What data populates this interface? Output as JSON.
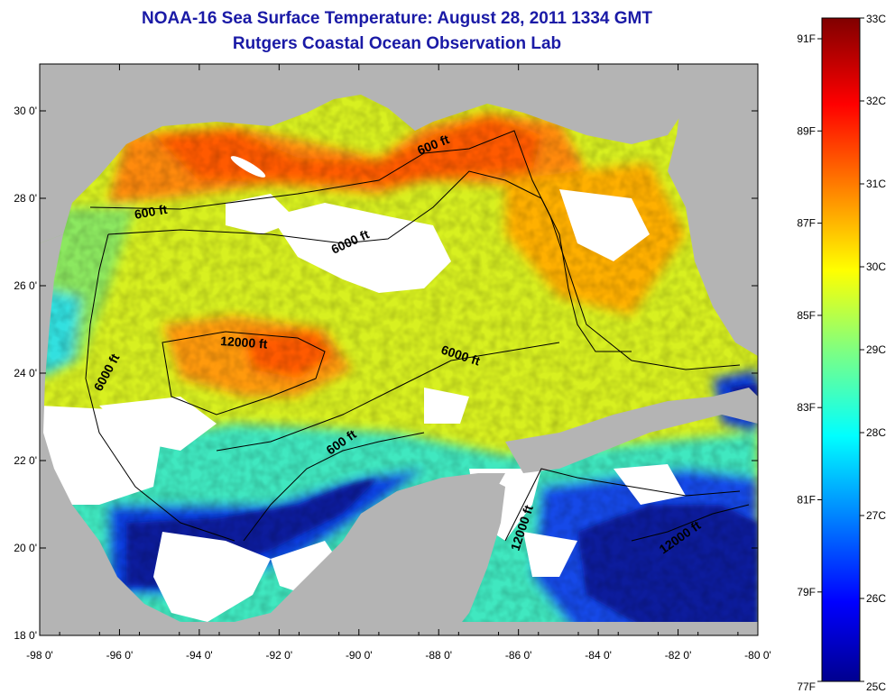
{
  "header": {
    "title": "NOAA-16 Sea Surface Temperature:  August 28, 2011 1334 GMT",
    "subtitle": "Rutgers Coastal Ocean Observation Lab"
  },
  "map": {
    "x_ticks": [
      "-98 0'",
      "-96 0'",
      "-94 0'",
      "-92 0'",
      "-90 0'",
      "-88 0'",
      "-86 0'",
      "-84 0'",
      "-82 0'",
      "-80 0'"
    ],
    "y_ticks": [
      "30 0'",
      "28 0'",
      "26 0'",
      "24 0'",
      "22 0'",
      "20 0'",
      "18 0'"
    ],
    "contour_labels": [
      "600 ft",
      "600 ft",
      "6000 ft",
      "12000 ft",
      "6000 ft",
      "6000 ft",
      "600 ft",
      "12000 ft",
      "12000 ft"
    ],
    "land_color": "#b4b4b4",
    "cloud_color": "#ffffff"
  },
  "colorbar": {
    "celsius_labels": [
      "33C",
      "32C",
      "31C",
      "30C",
      "29C",
      "28C",
      "27C",
      "26C",
      "25C"
    ],
    "fahrenheit_labels": [
      "91F",
      "89F",
      "87F",
      "85F",
      "83F",
      "81F",
      "79F",
      "77F"
    ],
    "colormap": [
      "#00008f",
      "#0000ff",
      "#00bfff",
      "#40ffbf",
      "#ffff00",
      "#ff8000",
      "#ff0000",
      "#800000"
    ]
  }
}
